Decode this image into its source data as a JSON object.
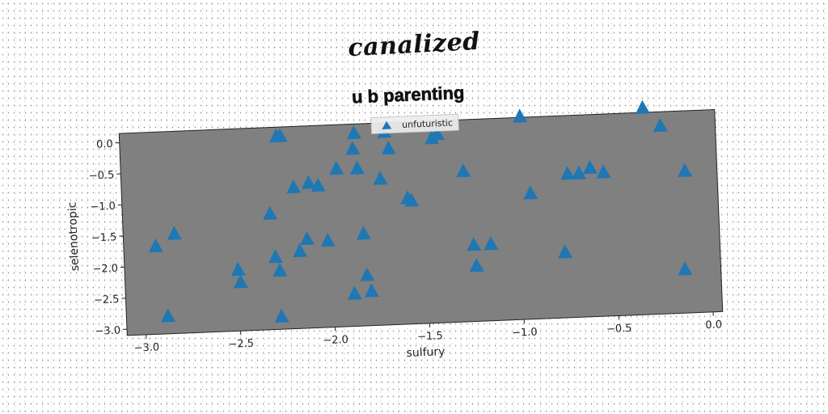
{
  "suptitle": "canalized",
  "chart_data": {
    "type": "scatter",
    "title": "u b parenting",
    "xlabel": "sulfury",
    "ylabel": "selenotropic",
    "xlim": [
      -3.1,
      0.05
    ],
    "ylim": [
      -3.1,
      0.15
    ],
    "xticks": [
      -3.0,
      -2.5,
      -2.0,
      -1.5,
      -1.0,
      -0.5,
      0.0
    ],
    "xtick_labels": [
      "−3.0",
      "−2.5",
      "−2.0",
      "−1.5",
      "−1.0",
      "−0.5",
      "0.0"
    ],
    "yticks": [
      0.0,
      -0.5,
      -1.0,
      -1.5,
      -2.0,
      -2.5,
      -3.0
    ],
    "ytick_labels": [
      "0.0",
      "−0.5",
      "−1.0",
      "−1.5",
      "−2.0",
      "−2.5",
      "−3.0"
    ],
    "legend_position": "top-center",
    "plot_background": "#808080",
    "grid": false,
    "series": [
      {
        "name": "unfuturistic",
        "color": "#1f77b4",
        "marker": "triangle",
        "x": [
          -2.93,
          -2.83,
          -2.88,
          -2.5,
          -2.49,
          -2.32,
          -2.3,
          -2.28,
          -2.28,
          -2.27,
          -2.25,
          -2.19,
          -2.17,
          -2.13,
          -2.11,
          -2.06,
          -2.02,
          -1.96,
          -1.89,
          -1.87,
          -1.86,
          -1.85,
          -1.83,
          -1.82,
          -1.8,
          -1.73,
          -1.7,
          -1.68,
          -1.59,
          -1.57,
          -1.45,
          -1.42,
          -1.29,
          -1.25,
          -1.24,
          -1.16,
          -0.98,
          -0.94,
          -0.77,
          -0.74,
          -0.68,
          -0.62,
          -0.55,
          -0.33,
          -0.24,
          -0.14,
          -0.12
        ],
        "y": [
          -1.69,
          -1.5,
          -2.82,
          -2.12,
          -2.32,
          -1.24,
          -1.94,
          -2.16,
          -2.9,
          0.0,
          0.0,
          -0.83,
          -1.86,
          -1.67,
          -0.77,
          -0.82,
          -1.71,
          -0.56,
          -2.58,
          -0.25,
          0.0,
          -0.57,
          -1.62,
          -2.29,
          -2.55,
          -0.75,
          0.0,
          -0.27,
          -1.08,
          -1.12,
          -0.13,
          -0.07,
          -0.68,
          -1.87,
          -2.21,
          -1.87,
          0.16,
          -1.08,
          -2.05,
          -0.79,
          -0.79,
          -0.71,
          -0.79,
          0.22,
          -0.08,
          -2.4,
          -0.82
        ]
      }
    ]
  }
}
